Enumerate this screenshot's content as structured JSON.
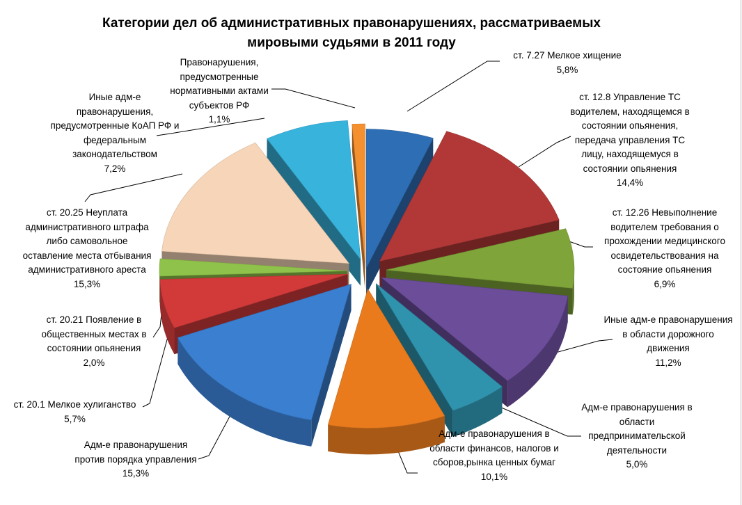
{
  "chart_data": {
    "type": "pie",
    "variant": "3d-exploded",
    "title_lines": [
      "Категории дел об административных правонарушениях, рассматриваемых",
      "мировыми судьями в 2011 году"
    ],
    "legend": "none",
    "slices": [
      {
        "label_lines": [
          "ст. 7.27 Мелкое хищение"
        ],
        "value_text": "5,8%",
        "value": 5.8,
        "color": "#2e6eb5"
      },
      {
        "label_lines": [
          "ст. 12.8 Управление ТС",
          "водителем, находящемся в",
          "состоянии опьянения,",
          "передача управления ТС",
          "лицу, находящемуся в",
          "состоянии опьянения"
        ],
        "value_text": "14,4%",
        "value": 14.4,
        "color": "#b23837"
      },
      {
        "label_lines": [
          "ст. 12.26 Невыполнение",
          "водителем требования о",
          "прохождении медицинского",
          "освидетельствования на",
          "состояние опьянения"
        ],
        "value_text": "6,9%",
        "value": 6.9,
        "color": "#7fa43a"
      },
      {
        "label_lines": [
          "Иные адм-е правонарушения",
          "в области дорожного",
          "движения"
        ],
        "value_text": "11,2%",
        "value": 11.2,
        "color": "#6b4d9a"
      },
      {
        "label_lines": [
          "Адм-е правонарушения в",
          "области",
          "предпринимательской",
          "деятельности"
        ],
        "value_text": "5,0%",
        "value": 5.0,
        "color": "#2f93ad"
      },
      {
        "label_lines": [
          "Адм-е правонарушения в",
          "области финансов, налогов и",
          "сборов,рынка ценных бумаг"
        ],
        "value_text": "10,1%",
        "value": 10.1,
        "color": "#e97b1d"
      },
      {
        "label_lines": [
          "Адм-е правонарушения",
          "против порядка управления"
        ],
        "value_text": "15,3%",
        "value": 15.3,
        "color": "#3b7fd0"
      },
      {
        "label_lines": [
          "ст. 20.1 Мелкое хулиганство"
        ],
        "value_text": "5,7%",
        "value": 5.7,
        "color": "#d23a3a"
      },
      {
        "label_lines": [
          "ст. 20.21 Появление в",
          "общественных местах в",
          "состоянии опьянения"
        ],
        "value_text": "2,0%",
        "value": 2.0,
        "color": "#8fc24a"
      },
      {
        "label_lines": [
          "ст. 20.25 Неуплата",
          "административного штрафа",
          "либо самовольное",
          "оставление места отбывания",
          "административного ареста"
        ],
        "value_text": "15,3%",
        "value": 15.3,
        "color": "#f7d5b8"
      },
      {
        "label_lines": [
          "Иные адм-е",
          "правонарушения,",
          "предусмотренные КоАП РФ и",
          "федеральным",
          "законодательством"
        ],
        "value_text": "7,2%",
        "value": 7.2,
        "color": "#38b3dc"
      },
      {
        "label_lines": [
          "Правонарушения,",
          "предусмотренные",
          "нормативными актами",
          "субъектов РФ"
        ],
        "value_text": "1,1%",
        "value": 1.1,
        "color": "#f5902f"
      }
    ]
  }
}
